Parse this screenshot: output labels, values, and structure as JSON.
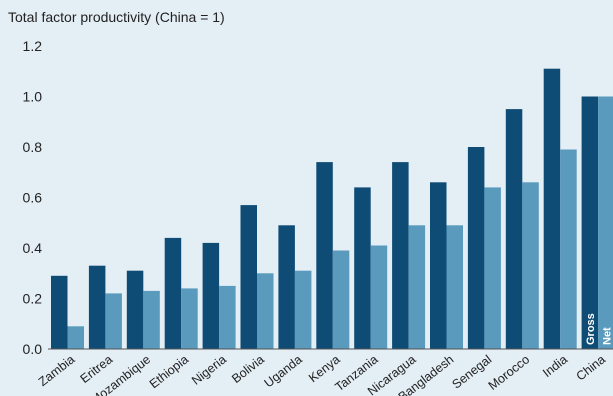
{
  "chart_data": {
    "type": "bar",
    "title": "Total factor productivity (China = 1)",
    "xlabel": "",
    "ylabel": "",
    "categories": [
      "Zambia",
      "Eritrea",
      "Mozambique",
      "Ethiopia",
      "Nigeria",
      "Bolivia",
      "Uganda",
      "Kenya",
      "Tanzania",
      "Nicaragua",
      "Bangladesh",
      "Senegal",
      "Morocco",
      "India",
      "China"
    ],
    "series": [
      {
        "name": "Gross",
        "color": "#0f4c75",
        "values": [
          0.29,
          0.33,
          0.31,
          0.44,
          0.42,
          0.57,
          0.49,
          0.74,
          0.64,
          0.74,
          0.66,
          0.8,
          0.95,
          1.11,
          1.0
        ]
      },
      {
        "name": "Net",
        "color": "#5a9abd",
        "values": [
          0.09,
          0.22,
          0.23,
          0.24,
          0.25,
          0.3,
          0.31,
          0.39,
          0.41,
          0.49,
          0.49,
          0.64,
          0.66,
          0.79,
          1.0
        ]
      }
    ],
    "ylim": [
      0,
      1.2
    ],
    "yticks": [
      "0.0",
      "0.2",
      "0.4",
      "0.6",
      "0.8",
      "1.0",
      "1.2"
    ],
    "legend": "inline on China bars",
    "grid": false,
    "background_color": "#e4eef5"
  }
}
